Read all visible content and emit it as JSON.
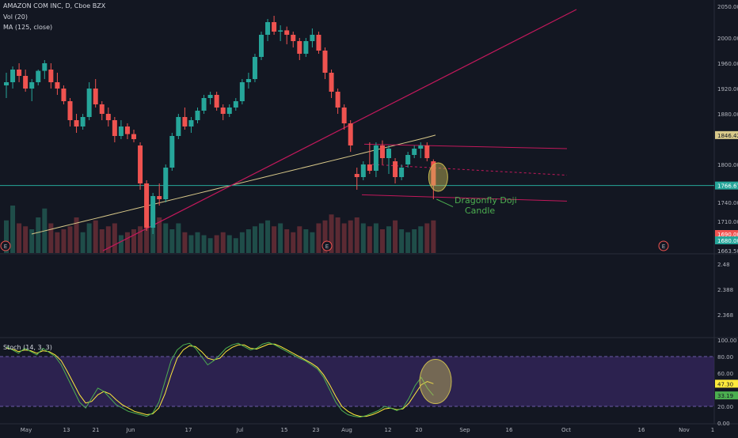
{
  "header": {
    "symbol_line": "AMAZON COM INC, D, Cboe BZX",
    "vol_label": "Vol (20)",
    "ma_label": "MA (125, close)",
    "stoch_label": "Stoch (14, 3, 3)"
  },
  "colors": {
    "background": "#131722",
    "up": "#26a69a",
    "down": "#ef5350",
    "ma": "#d9c98a",
    "trendline": "#c2185b",
    "horizontal_line": "#26a69a",
    "stoch_k": "#4caf50",
    "stoch_d": "#ffeb3b",
    "stoch_band": "#3e2a6e",
    "annotation": "#4caf50"
  },
  "chart_data": {
    "type": "candlestick",
    "price_axis": {
      "ticks": [
        "2050.00",
        "2000.00",
        "1960.00",
        "1920.00",
        "1880.00",
        "1800.00",
        "1740.00",
        "1710.00",
        "1663.50"
      ],
      "tick_values": [
        2050,
        2000,
        1960,
        1920,
        1880,
        1800,
        1740,
        1710,
        1663.5
      ],
      "range": [
        1660,
        2055
      ]
    },
    "price_tags": [
      {
        "label": "1846.42",
        "value": 1846.42,
        "color": "#d9c98a"
      },
      {
        "label": "1766.67",
        "value": 1766.67,
        "color": "#26a69a"
      },
      {
        "label": "1690.00",
        "value": 1690,
        "color": "#ef5350"
      },
      {
        "label": "1680.00",
        "value": 1680,
        "color": "#26a69a"
      }
    ],
    "lower_axis": {
      "ticks": [
        "2.48",
        "2.388",
        "2.368"
      ],
      "tick_values": [
        2.48,
        2.388,
        2.368
      ]
    },
    "stoch_axis": {
      "ticks": [
        "100.00",
        "80.00",
        "60.00",
        "20.00",
        "0.00"
      ],
      "tick_values": [
        100,
        80,
        60,
        20,
        0
      ],
      "tags": [
        {
          "label": "47.30",
          "value": 47.3,
          "color": "#ffeb3b"
        },
        {
          "label": "33.19",
          "value": 33.19,
          "color": "#4caf50"
        }
      ]
    },
    "x_ticks": [
      "May",
      "13",
      "21",
      "Jun",
      "17",
      "Jul",
      "15",
      "23",
      "Aug",
      "12",
      "20",
      "Sep",
      "16",
      "Oct",
      "16",
      "Nov",
      "1"
    ],
    "candles": [
      {
        "o": 1925,
        "h": 1945,
        "l": 1905,
        "c": 1930
      },
      {
        "o": 1930,
        "h": 1955,
        "l": 1920,
        "c": 1950
      },
      {
        "o": 1950,
        "h": 1960,
        "l": 1930,
        "c": 1940
      },
      {
        "o": 1940,
        "h": 1950,
        "l": 1915,
        "c": 1920
      },
      {
        "o": 1920,
        "h": 1935,
        "l": 1900,
        "c": 1930
      },
      {
        "o": 1930,
        "h": 1950,
        "l": 1925,
        "c": 1948
      },
      {
        "o": 1948,
        "h": 1965,
        "l": 1935,
        "c": 1960
      },
      {
        "o": 1950,
        "h": 1960,
        "l": 1920,
        "c": 1930
      },
      {
        "o": 1930,
        "h": 1945,
        "l": 1910,
        "c": 1920
      },
      {
        "o": 1920,
        "h": 1925,
        "l": 1895,
        "c": 1900
      },
      {
        "o": 1900,
        "h": 1905,
        "l": 1860,
        "c": 1870
      },
      {
        "o": 1870,
        "h": 1880,
        "l": 1850,
        "c": 1860
      },
      {
        "o": 1860,
        "h": 1880,
        "l": 1855,
        "c": 1875
      },
      {
        "o": 1875,
        "h": 1930,
        "l": 1870,
        "c": 1920
      },
      {
        "o": 1920,
        "h": 1935,
        "l": 1890,
        "c": 1895
      },
      {
        "o": 1895,
        "h": 1900,
        "l": 1870,
        "c": 1880
      },
      {
        "o": 1880,
        "h": 1890,
        "l": 1860,
        "c": 1870
      },
      {
        "o": 1870,
        "h": 1875,
        "l": 1835,
        "c": 1845
      },
      {
        "o": 1845,
        "h": 1870,
        "l": 1840,
        "c": 1860
      },
      {
        "o": 1860,
        "h": 1865,
        "l": 1840,
        "c": 1848
      },
      {
        "o": 1848,
        "h": 1855,
        "l": 1835,
        "c": 1840
      },
      {
        "o": 1830,
        "h": 1835,
        "l": 1760,
        "c": 1770
      },
      {
        "o": 1770,
        "h": 1775,
        "l": 1695,
        "c": 1700
      },
      {
        "o": 1700,
        "h": 1755,
        "l": 1690,
        "c": 1750
      },
      {
        "o": 1750,
        "h": 1770,
        "l": 1735,
        "c": 1745
      },
      {
        "o": 1745,
        "h": 1800,
        "l": 1740,
        "c": 1795
      },
      {
        "o": 1795,
        "h": 1850,
        "l": 1790,
        "c": 1845
      },
      {
        "o": 1845,
        "h": 1880,
        "l": 1840,
        "c": 1875
      },
      {
        "o": 1875,
        "h": 1890,
        "l": 1855,
        "c": 1860
      },
      {
        "o": 1860,
        "h": 1875,
        "l": 1850,
        "c": 1870
      },
      {
        "o": 1870,
        "h": 1890,
        "l": 1865,
        "c": 1885
      },
      {
        "o": 1885,
        "h": 1910,
        "l": 1880,
        "c": 1905
      },
      {
        "o": 1905,
        "h": 1915,
        "l": 1895,
        "c": 1910
      },
      {
        "o": 1910,
        "h": 1915,
        "l": 1885,
        "c": 1890
      },
      {
        "o": 1890,
        "h": 1895,
        "l": 1870,
        "c": 1880
      },
      {
        "o": 1880,
        "h": 1895,
        "l": 1875,
        "c": 1890
      },
      {
        "o": 1890,
        "h": 1905,
        "l": 1885,
        "c": 1900
      },
      {
        "o": 1900,
        "h": 1935,
        "l": 1895,
        "c": 1930
      },
      {
        "o": 1930,
        "h": 1945,
        "l": 1920,
        "c": 1935
      },
      {
        "o": 1935,
        "h": 1975,
        "l": 1930,
        "c": 1970
      },
      {
        "o": 1970,
        "h": 2010,
        "l": 1965,
        "c": 2005
      },
      {
        "o": 2005,
        "h": 2030,
        "l": 1995,
        "c": 2025
      },
      {
        "o": 2025,
        "h": 2035,
        "l": 2005,
        "c": 2010
      },
      {
        "o": 2010,
        "h": 2020,
        "l": 1995,
        "c": 2012
      },
      {
        "o": 2012,
        "h": 2018,
        "l": 1990,
        "c": 2005
      },
      {
        "o": 2005,
        "h": 2010,
        "l": 1985,
        "c": 1995
      },
      {
        "o": 1995,
        "h": 2000,
        "l": 1965,
        "c": 1975
      },
      {
        "o": 1975,
        "h": 2000,
        "l": 1970,
        "c": 1995
      },
      {
        "o": 1995,
        "h": 2015,
        "l": 1985,
        "c": 2005
      },
      {
        "o": 2005,
        "h": 2010,
        "l": 1975,
        "c": 1980
      },
      {
        "o": 1980,
        "h": 1985,
        "l": 1935,
        "c": 1945
      },
      {
        "o": 1945,
        "h": 1950,
        "l": 1905,
        "c": 1915
      },
      {
        "o": 1915,
        "h": 1920,
        "l": 1880,
        "c": 1890
      },
      {
        "o": 1890,
        "h": 1895,
        "l": 1855,
        "c": 1865
      },
      {
        "o": 1865,
        "h": 1870,
        "l": 1820,
        "c": 1830
      },
      {
        "o": 1785,
        "h": 1795,
        "l": 1760,
        "c": 1780
      },
      {
        "o": 1780,
        "h": 1805,
        "l": 1775,
        "c": 1800
      },
      {
        "o": 1800,
        "h": 1835,
        "l": 1785,
        "c": 1790
      },
      {
        "o": 1790,
        "h": 1835,
        "l": 1780,
        "c": 1830
      },
      {
        "o": 1830,
        "h": 1838,
        "l": 1800,
        "c": 1810
      },
      {
        "o": 1810,
        "h": 1830,
        "l": 1785,
        "c": 1825
      },
      {
        "o": 1805,
        "h": 1810,
        "l": 1770,
        "c": 1780
      },
      {
        "o": 1780,
        "h": 1800,
        "l": 1775,
        "c": 1795
      },
      {
        "o": 1800,
        "h": 1820,
        "l": 1795,
        "c": 1815
      },
      {
        "o": 1815,
        "h": 1830,
        "l": 1810,
        "c": 1825
      },
      {
        "o": 1825,
        "h": 1835,
        "l": 1810,
        "c": 1830
      },
      {
        "o": 1830,
        "h": 1835,
        "l": 1805,
        "c": 1810
      },
      {
        "o": 1805,
        "h": 1808,
        "l": 1745,
        "c": 1766.67
      }
    ],
    "ma125": [
      1690,
      1694,
      1698,
      1702,
      1706,
      1710,
      1714,
      1718,
      1722,
      1726,
      1730,
      1734,
      1738,
      1742,
      1746,
      1750,
      1754,
      1758,
      1762,
      1766,
      1770,
      1774,
      1778,
      1782,
      1786,
      1790,
      1794,
      1798,
      1802,
      1806,
      1810,
      1814,
      1818,
      1822,
      1826,
      1830,
      1834,
      1838,
      1842,
      1846.42
    ],
    "volumes": [
      0.55,
      0.8,
      0.5,
      0.45,
      0.4,
      0.6,
      0.75,
      0.5,
      0.35,
      0.4,
      0.45,
      0.6,
      0.35,
      0.5,
      0.55,
      0.4,
      0.45,
      0.5,
      0.3,
      0.35,
      0.4,
      0.45,
      0.9,
      0.7,
      0.6,
      0.5,
      0.4,
      0.5,
      0.35,
      0.3,
      0.35,
      0.3,
      0.25,
      0.3,
      0.35,
      0.3,
      0.25,
      0.35,
      0.4,
      0.45,
      0.5,
      0.55,
      0.45,
      0.5,
      0.4,
      0.35,
      0.45,
      0.4,
      0.35,
      0.5,
      0.55,
      0.65,
      0.6,
      0.5,
      0.55,
      0.6,
      0.5,
      0.45,
      0.5,
      0.4,
      0.45,
      0.55,
      0.4,
      0.35,
      0.4,
      0.45,
      0.5,
      0.55
    ],
    "stoch_k": [
      92,
      88,
      84,
      90,
      86,
      82,
      90,
      85,
      80,
      70,
      55,
      40,
      25,
      18,
      30,
      42,
      38,
      30,
      22,
      18,
      14,
      12,
      10,
      8,
      12,
      25,
      50,
      75,
      88,
      94,
      96,
      90,
      80,
      70,
      75,
      82,
      90,
      94,
      96,
      92,
      88,
      90,
      95,
      97,
      94,
      90,
      86,
      82,
      78,
      75,
      70,
      65,
      55,
      40,
      25,
      15,
      10,
      8,
      7,
      9,
      12,
      15,
      20,
      18,
      15,
      18,
      30,
      45,
      55,
      42,
      33.19
    ],
    "stoch_d": [
      90,
      89,
      86,
      88,
      87,
      84,
      87,
      86,
      82,
      75,
      62,
      48,
      34,
      24,
      26,
      34,
      38,
      35,
      28,
      22,
      18,
      14,
      12,
      10,
      11,
      18,
      35,
      58,
      78,
      88,
      93,
      92,
      86,
      78,
      76,
      78,
      86,
      91,
      94,
      94,
      90,
      89,
      92,
      95,
      95,
      92,
      88,
      84,
      80,
      76,
      72,
      67,
      58,
      46,
      32,
      20,
      14,
      10,
      8,
      8,
      10,
      13,
      17,
      18,
      16,
      17,
      24,
      35,
      46,
      50,
      47.3
    ],
    "drawings": {
      "annotation_line1": "Dragonfly Doji",
      "annotation_line2": "Candle",
      "earnings_marker": "E"
    }
  }
}
